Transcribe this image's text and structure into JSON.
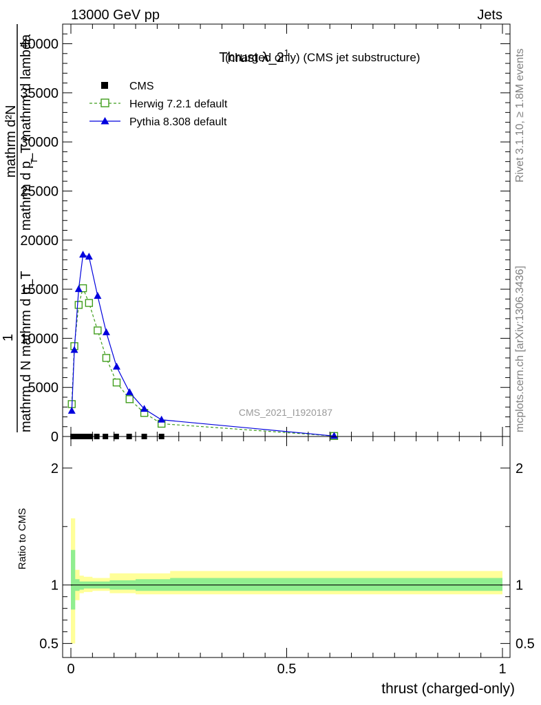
{
  "header": {
    "left": "13000 GeV pp",
    "right": "Jets"
  },
  "side": {
    "rivet": "Rivet 3.1.10, ≥ 1.8M events",
    "mcplots": "mcplots.cern.ch [arXiv:1306.3436]"
  },
  "colors": {
    "herwig": "#3f9d1b",
    "pythia": "#0000dd",
    "cms": "#000000",
    "band_outer": "#ffff99",
    "band_inner": "#90ee90"
  },
  "chart_data": [
    {
      "type": "line",
      "title": "Thrust λ_2",
      "title_sup": "1",
      "title_suffix": "(charged only) (CMS jet substructure)",
      "ylabel_top": "mathrm d²N",
      "ylabel_top_b": "mathrm d p_T mathrm d lambda",
      "ylabel_bottom": "mathrm d N mathrm d p_T",
      "ylabel_one": "1",
      "ylabel_sub": "T",
      "watermark": "CMS_2021_I1920187",
      "xlim": [
        0,
        1
      ],
      "ylim": [
        0,
        42000
      ],
      "yticks": [
        0,
        5000,
        10000,
        15000,
        20000,
        25000,
        30000,
        35000,
        40000
      ],
      "ytick_labels": [
        "0",
        "5000",
        "10000",
        "15000",
        "20000",
        "25000",
        "30000",
        "35000",
        "40000"
      ],
      "legend": [
        "CMS",
        "Herwig 7.2.1 default",
        "Pythia 8.308 default"
      ],
      "series": [
        {
          "name": "CMS",
          "marker": "square",
          "x": [
            0.005,
            0.015,
            0.025,
            0.035,
            0.045,
            0.06,
            0.08,
            0.105,
            0.135,
            0.17,
            0.21,
            0.61
          ],
          "values": [
            0,
            0,
            0,
            0,
            0,
            0,
            0,
            0,
            0,
            0,
            0,
            0
          ]
        },
        {
          "name": "Herwig 7.2.1 default",
          "marker": "open-square",
          "x": [
            0.002,
            0.008,
            0.018,
            0.028,
            0.042,
            0.062,
            0.082,
            0.106,
            0.136,
            0.17,
            0.21,
            0.61
          ],
          "values": [
            3300,
            9200,
            13400,
            15100,
            13600,
            10800,
            8000,
            5500,
            3800,
            2400,
            1300,
            50
          ]
        },
        {
          "name": "Pythia 8.308 default",
          "marker": "filled-triangle",
          "x": [
            0.002,
            0.008,
            0.018,
            0.028,
            0.042,
            0.062,
            0.082,
            0.106,
            0.136,
            0.17,
            0.21,
            0.61
          ],
          "values": [
            2600,
            8800,
            15000,
            18500,
            18300,
            14300,
            10600,
            7100,
            4500,
            2800,
            1700,
            50
          ]
        }
      ]
    },
    {
      "type": "area",
      "ylabel": "Ratio to CMS",
      "xlabel": "thrust (charged-only)",
      "xlim": [
        0,
        1
      ],
      "ylim": [
        0.38,
        2.27
      ],
      "yticks": [
        0.5,
        1,
        2
      ],
      "ytick_labels": [
        "0.5",
        "1",
        "2"
      ],
      "xticks": [
        0,
        0.5,
        1
      ],
      "xtick_labels": [
        "0",
        "0.5",
        "1"
      ],
      "band_edges": [
        0,
        0.01,
        0.02,
        0.03,
        0.04,
        0.05,
        0.07,
        0.09,
        0.12,
        0.15,
        0.19,
        0.23,
        1.0
      ],
      "band_outer": [
        [
          0.5,
          1.57
        ],
        [
          0.87,
          1.13
        ],
        [
          0.93,
          1.08
        ],
        [
          0.94,
          1.07
        ],
        [
          0.94,
          1.07
        ],
        [
          0.95,
          1.06
        ],
        [
          0.95,
          1.06
        ],
        [
          0.93,
          1.1
        ],
        [
          0.93,
          1.1
        ],
        [
          0.92,
          1.1
        ],
        [
          0.92,
          1.1
        ],
        [
          0.92,
          1.12
        ]
      ],
      "band_inner": [
        [
          0.79,
          1.3
        ],
        [
          0.95,
          1.05
        ],
        [
          0.96,
          1.03
        ],
        [
          0.97,
          1.03
        ],
        [
          0.97,
          1.03
        ],
        [
          0.97,
          1.03
        ],
        [
          0.97,
          1.03
        ],
        [
          0.96,
          1.04
        ],
        [
          0.96,
          1.04
        ],
        [
          0.95,
          1.05
        ],
        [
          0.95,
          1.05
        ],
        [
          0.95,
          1.06
        ]
      ],
      "reference": 1
    }
  ]
}
